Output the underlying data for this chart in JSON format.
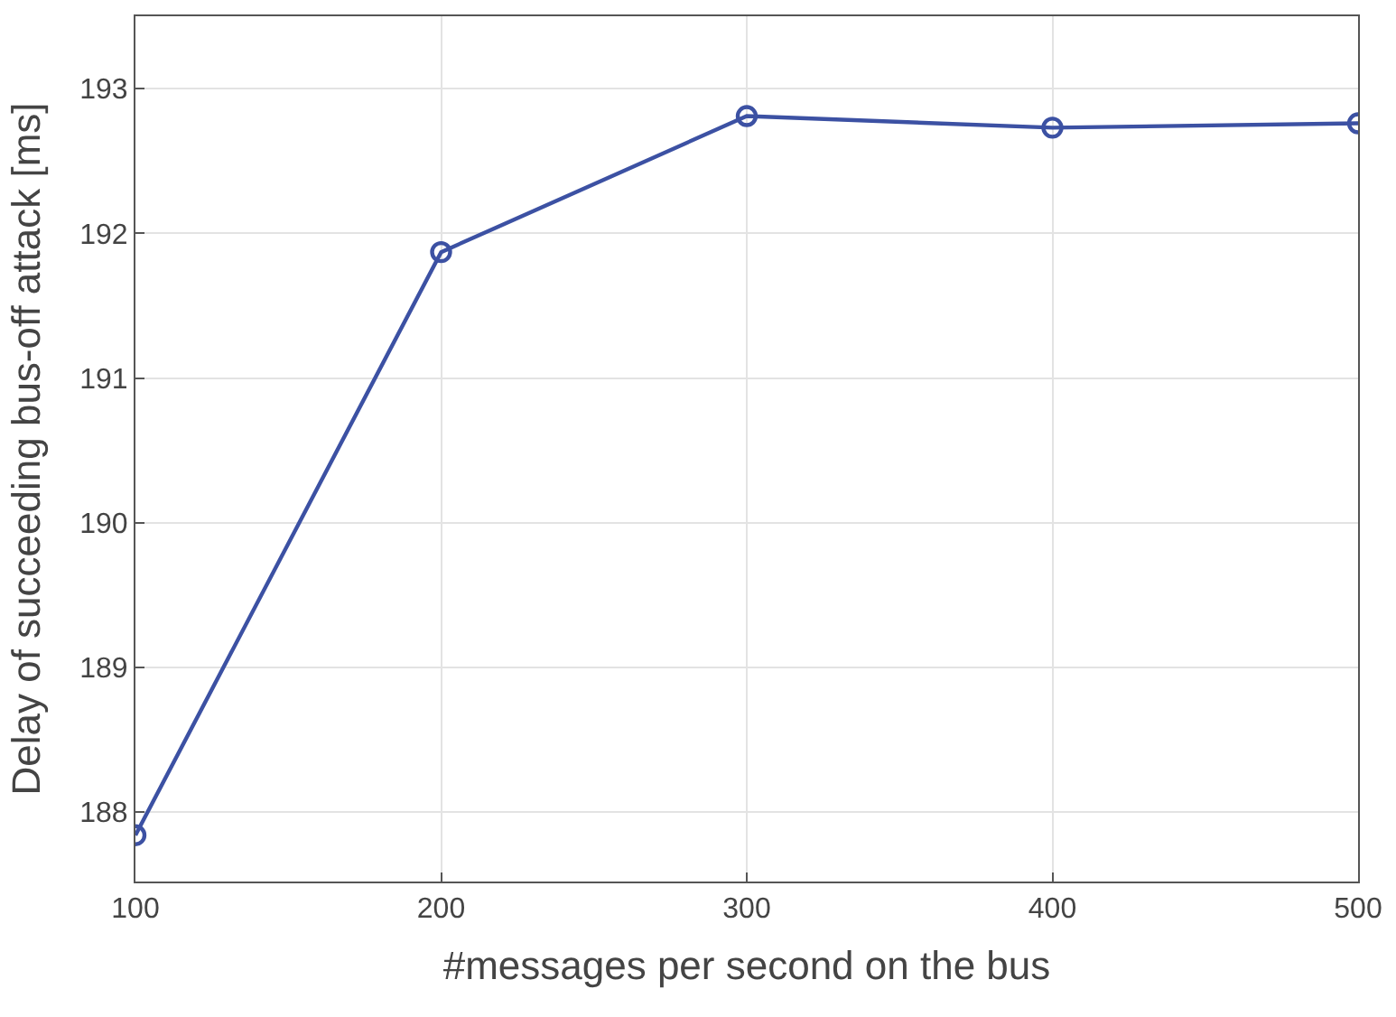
{
  "chart_data": {
    "type": "line",
    "xlabel": "#messages per second on the bus",
    "ylabel": "Delay of succeeding bus-off attack [ms]",
    "x": [
      100,
      200,
      300,
      400,
      500
    ],
    "series": [
      {
        "color": "#3c51a3",
        "values": [
          187.84,
          191.87,
          192.81,
          192.73,
          192.76
        ]
      }
    ],
    "xlim": [
      100,
      500
    ],
    "xticks": [
      100,
      200,
      300,
      400,
      500
    ],
    "ylim": [
      187.52,
      193.5
    ],
    "yticks": [
      188,
      189,
      190,
      191,
      192,
      193
    ],
    "grid": true,
    "marker": "circle",
    "line_style": "solid"
  }
}
